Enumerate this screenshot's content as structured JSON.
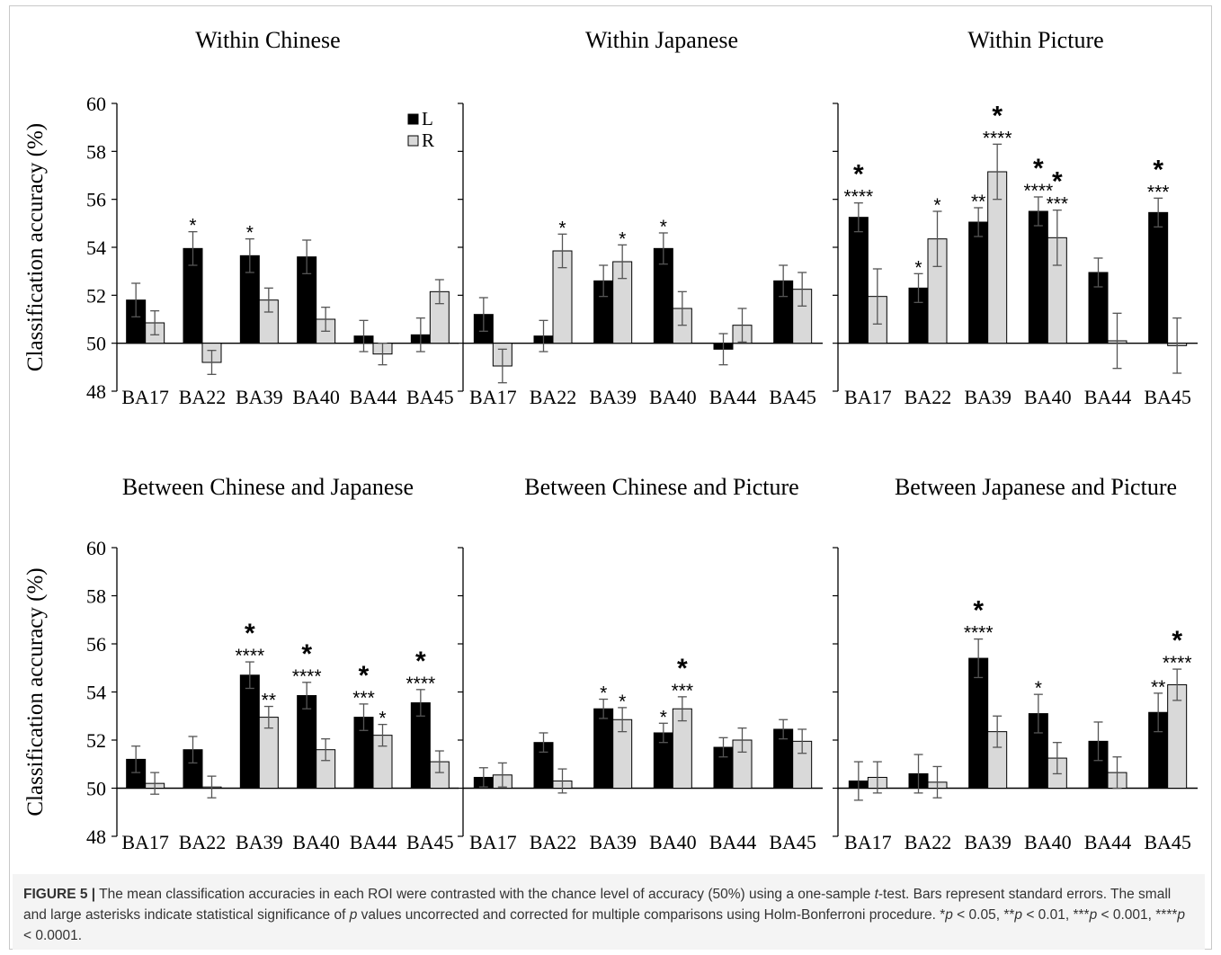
{
  "colors": {
    "L": "#000000",
    "R": "#d9d9d9",
    "axis": "#000000",
    "error_bar": "#555555"
  },
  "y_axis_label": "Classification accuracy (%)",
  "legend": {
    "L": "L",
    "R": "R"
  },
  "chart_data": [
    {
      "type": "bar",
      "title": "Within Chinese",
      "ylim": [
        48,
        60
      ],
      "yticks": [
        48,
        50,
        52,
        54,
        56,
        58,
        60
      ],
      "baseline": 50,
      "ylabel": "Classification accuracy (%)",
      "categories": [
        "BA17",
        "BA22",
        "BA39",
        "BA40",
        "BA44",
        "BA45"
      ],
      "series": [
        {
          "name": "L",
          "values": [
            51.8,
            53.95,
            53.65,
            53.6,
            50.3,
            50.35
          ],
          "errors": [
            0.7,
            0.7,
            0.7,
            0.7,
            0.65,
            0.7
          ]
        },
        {
          "name": "R",
          "values": [
            50.85,
            49.2,
            51.8,
            51.0,
            49.55,
            52.15
          ],
          "errors": [
            0.5,
            0.5,
            0.5,
            0.5,
            0.45,
            0.5
          ]
        }
      ],
      "annotations": [
        {
          "series": "L",
          "index": 1,
          "small": "*",
          "large": ""
        },
        {
          "series": "L",
          "index": 2,
          "small": "*",
          "large": ""
        }
      ]
    },
    {
      "type": "bar",
      "title": "Within Japanese",
      "ylim": [
        48,
        60
      ],
      "baseline": 50,
      "categories": [
        "BA17",
        "BA22",
        "BA39",
        "BA40",
        "BA44",
        "BA45"
      ],
      "series": [
        {
          "name": "L",
          "values": [
            51.2,
            50.3,
            52.6,
            53.95,
            49.75,
            52.6
          ],
          "errors": [
            0.7,
            0.65,
            0.65,
            0.65,
            0.65,
            0.65
          ]
        },
        {
          "name": "R",
          "values": [
            49.05,
            53.85,
            53.4,
            51.45,
            50.75,
            52.25
          ],
          "errors": [
            0.7,
            0.7,
            0.7,
            0.7,
            0.7,
            0.7
          ]
        }
      ],
      "annotations": [
        {
          "series": "R",
          "index": 1,
          "small": "*",
          "large": ""
        },
        {
          "series": "R",
          "index": 2,
          "small": "*",
          "large": ""
        },
        {
          "series": "L",
          "index": 3,
          "small": "*",
          "large": ""
        }
      ]
    },
    {
      "type": "bar",
      "title": "Within Picture",
      "ylim": [
        48,
        60
      ],
      "baseline": 50,
      "categories": [
        "BA17",
        "BA22",
        "BA39",
        "BA40",
        "BA44",
        "BA45"
      ],
      "series": [
        {
          "name": "L",
          "values": [
            55.25,
            52.3,
            55.05,
            55.5,
            52.95,
            55.45
          ],
          "errors": [
            0.6,
            0.6,
            0.6,
            0.6,
            0.6,
            0.6
          ]
        },
        {
          "name": "R",
          "values": [
            51.95,
            54.35,
            57.15,
            54.4,
            50.1,
            49.9
          ],
          "errors": [
            1.15,
            1.15,
            1.15,
            1.15,
            1.15,
            1.15
          ]
        }
      ],
      "annotations": [
        {
          "series": "L",
          "index": 0,
          "small": "****",
          "large": "*"
        },
        {
          "series": "L",
          "index": 1,
          "small": "*",
          "large": ""
        },
        {
          "series": "R",
          "index": 1,
          "small": "*",
          "large": ""
        },
        {
          "series": "L",
          "index": 2,
          "small": "**",
          "large": ""
        },
        {
          "series": "R",
          "index": 2,
          "small": "****",
          "large": "*"
        },
        {
          "series": "L",
          "index": 3,
          "small": "****",
          "large": "*"
        },
        {
          "series": "R",
          "index": 3,
          "small": "***",
          "large": "*"
        },
        {
          "series": "L",
          "index": 5,
          "small": "***",
          "large": "*"
        }
      ]
    },
    {
      "type": "bar",
      "title": "Between Chinese and Japanese",
      "ylim": [
        48,
        60
      ],
      "baseline": 50,
      "ylabel": "Classification accuracy (%)",
      "categories": [
        "BA17",
        "BA22",
        "BA39",
        "BA40",
        "BA44",
        "BA45"
      ],
      "series": [
        {
          "name": "L",
          "values": [
            51.2,
            51.6,
            54.7,
            53.85,
            52.95,
            53.55
          ],
          "errors": [
            0.55,
            0.55,
            0.55,
            0.55,
            0.55,
            0.55
          ]
        },
        {
          "name": "R",
          "values": [
            50.2,
            50.05,
            52.95,
            51.6,
            52.2,
            51.1
          ],
          "errors": [
            0.45,
            0.45,
            0.45,
            0.45,
            0.45,
            0.45
          ]
        }
      ],
      "annotations": [
        {
          "series": "L",
          "index": 2,
          "small": "****",
          "large": "*"
        },
        {
          "series": "R",
          "index": 2,
          "small": "**",
          "large": ""
        },
        {
          "series": "L",
          "index": 3,
          "small": "****",
          "large": "*"
        },
        {
          "series": "L",
          "index": 4,
          "small": "***",
          "large": "*"
        },
        {
          "series": "R",
          "index": 4,
          "small": "*",
          "large": ""
        },
        {
          "series": "L",
          "index": 5,
          "small": "****",
          "large": "*"
        }
      ]
    },
    {
      "type": "bar",
      "title": "Between Chinese and Picture",
      "ylim": [
        48,
        60
      ],
      "baseline": 50,
      "categories": [
        "BA17",
        "BA22",
        "BA39",
        "BA40",
        "BA44",
        "BA45"
      ],
      "series": [
        {
          "name": "L",
          "values": [
            50.45,
            51.9,
            53.3,
            52.3,
            51.7,
            52.45
          ],
          "errors": [
            0.4,
            0.4,
            0.4,
            0.4,
            0.4,
            0.4
          ]
        },
        {
          "name": "R",
          "values": [
            50.55,
            50.3,
            52.85,
            53.3,
            52.0,
            51.95
          ],
          "errors": [
            0.5,
            0.5,
            0.5,
            0.5,
            0.5,
            0.5
          ]
        }
      ],
      "annotations": [
        {
          "series": "L",
          "index": 2,
          "small": "*",
          "large": ""
        },
        {
          "series": "R",
          "index": 2,
          "small": "*",
          "large": ""
        },
        {
          "series": "L",
          "index": 3,
          "small": "*",
          "large": ""
        },
        {
          "series": "R",
          "index": 3,
          "small": "***",
          "large": "*"
        }
      ]
    },
    {
      "type": "bar",
      "title": "Between Japanese and Picture",
      "ylim": [
        48,
        60
      ],
      "baseline": 50,
      "categories": [
        "BA17",
        "BA22",
        "BA39",
        "BA40",
        "BA44",
        "BA45"
      ],
      "series": [
        {
          "name": "L",
          "values": [
            50.3,
            50.6,
            55.4,
            53.1,
            51.95,
            53.15
          ],
          "errors": [
            0.8,
            0.8,
            0.8,
            0.8,
            0.8,
            0.8
          ]
        },
        {
          "name": "R",
          "values": [
            50.45,
            50.25,
            52.35,
            51.25,
            50.65,
            54.3
          ],
          "errors": [
            0.65,
            0.65,
            0.65,
            0.65,
            0.65,
            0.65
          ]
        }
      ],
      "annotations": [
        {
          "series": "L",
          "index": 2,
          "small": "****",
          "large": "*"
        },
        {
          "series": "L",
          "index": 3,
          "small": "*",
          "large": ""
        },
        {
          "series": "L",
          "index": 5,
          "small": "**",
          "large": ""
        },
        {
          "series": "R",
          "index": 5,
          "small": "****",
          "large": "*"
        }
      ]
    }
  ],
  "caption": {
    "label": "FIGURE 5 |",
    "text_1": " The mean classification accuracies in each ROI were contrasted with the chance level of accuracy (50%) using a one-sample ",
    "t": "t",
    "text_2": "-test. Bars represent standard errors. The small and large asterisks indicate statistical significance of ",
    "p": "p",
    "text_3": " values uncorrected and corrected for multiple comparisons using Holm-Bonferroni procedure. *",
    "p1": "p",
    "text_4": " < 0.05, **",
    "p2": "p",
    "text_5": " < 0.01, ***",
    "p3": "p",
    "text_6": " < 0.001, ****",
    "p4": "p",
    "text_7": " < 0.0001."
  }
}
